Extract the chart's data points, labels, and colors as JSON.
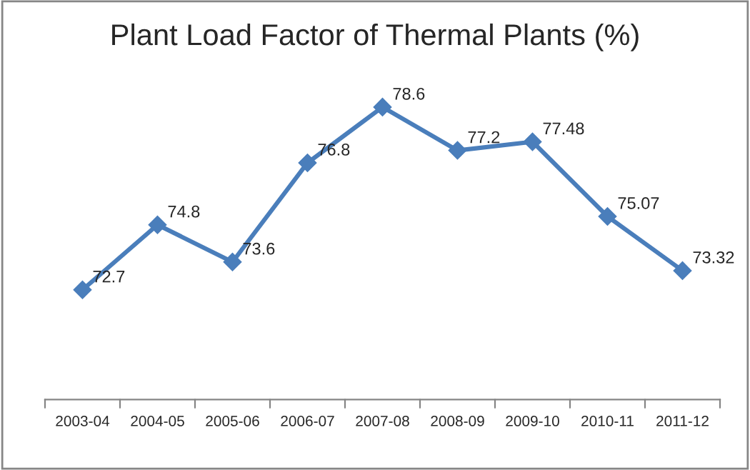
{
  "chart_data": {
    "type": "line",
    "title": "Plant Load Factor of Thermal Plants (%)",
    "categories": [
      "2003-04",
      "2004-05",
      "2005-06",
      "2006-07",
      "2007-08",
      "2008-09",
      "2009-10",
      "2010-11",
      "2011-12"
    ],
    "series": [
      {
        "color": "#4a7ebb",
        "values": [
          72.7,
          74.8,
          73.6,
          76.8,
          78.6,
          77.2,
          77.48,
          75.07,
          73.32
        ]
      }
    ],
    "data_labels": true,
    "marker": "diamond",
    "line_style": "solid",
    "grid": false,
    "tick_labels": "x"
  }
}
